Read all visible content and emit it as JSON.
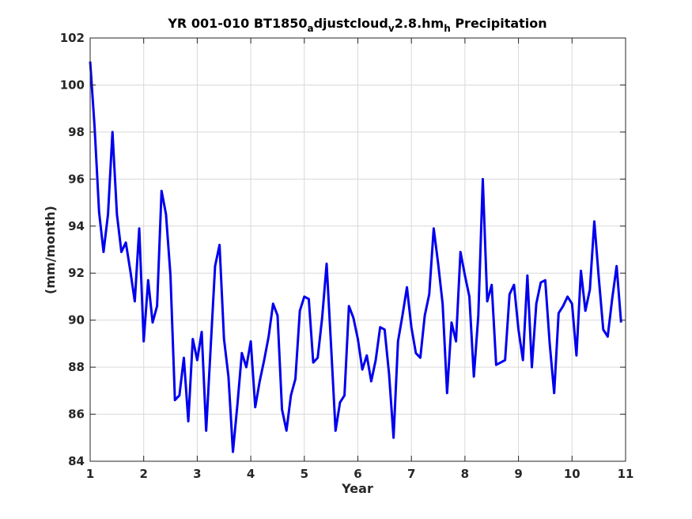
{
  "chart_data": {
    "type": "line",
    "title_parts": [
      {
        "text": "YR 001-010 BT1850",
        "sub": false
      },
      {
        "text": "a",
        "sub": true
      },
      {
        "text": "djustcloud",
        "sub": false
      },
      {
        "text": "v",
        "sub": true
      },
      {
        "text": "2.8.hm",
        "sub": false
      },
      {
        "text": "h",
        "sub": true
      },
      {
        "text": " Precipitation",
        "sub": false
      }
    ],
    "xlabel": "Year",
    "ylabel": "(mm/month)",
    "xlim": [
      1,
      11
    ],
    "ylim": [
      84,
      102
    ],
    "xticks": [
      1,
      2,
      3,
      4,
      5,
      6,
      7,
      8,
      9,
      10,
      11
    ],
    "yticks": [
      84,
      86,
      88,
      90,
      92,
      94,
      96,
      98,
      100,
      102
    ],
    "grid": true,
    "series": [
      {
        "color": "#0000ee",
        "x_start": 1,
        "x_step": 0.08333,
        "values": [
          101.0,
          98.2,
          94.6,
          92.9,
          94.5,
          98.0,
          94.5,
          92.9,
          93.3,
          92.1,
          90.8,
          93.9,
          89.1,
          91.7,
          89.9,
          90.6,
          95.5,
          94.5,
          91.9,
          86.6,
          86.8,
          88.4,
          85.7,
          89.2,
          88.3,
          89.5,
          85.3,
          88.8,
          92.3,
          93.2,
          89.2,
          87.6,
          84.4,
          86.4,
          88.6,
          88.0,
          89.1,
          86.3,
          87.4,
          88.3,
          89.3,
          90.7,
          90.2,
          86.2,
          85.3,
          86.8,
          87.5,
          90.4,
          91.0,
          90.9,
          88.2,
          88.4,
          90.1,
          92.4,
          88.9,
          85.3,
          86.5,
          86.8,
          90.6,
          90.1,
          89.2,
          87.9,
          88.5,
          87.4,
          88.3,
          89.7,
          89.6,
          87.7,
          85.0,
          89.1,
          90.2,
          91.4,
          89.7,
          88.6,
          88.4,
          90.2,
          91.1,
          93.9,
          92.4,
          90.7,
          86.9,
          89.9,
          89.1,
          92.9,
          91.9,
          91.0,
          87.6,
          90.2,
          96.0,
          90.8,
          91.5,
          88.1,
          88.2,
          88.3,
          91.1,
          91.5,
          89.6,
          88.3,
          91.9,
          88.0,
          90.7,
          91.6,
          91.7,
          89.0,
          86.9,
          90.3,
          90.6,
          91.0,
          90.7,
          88.5,
          92.1,
          90.4,
          91.3,
          94.2,
          91.8,
          89.6,
          89.3,
          90.9,
          92.3,
          89.9
        ]
      }
    ]
  }
}
